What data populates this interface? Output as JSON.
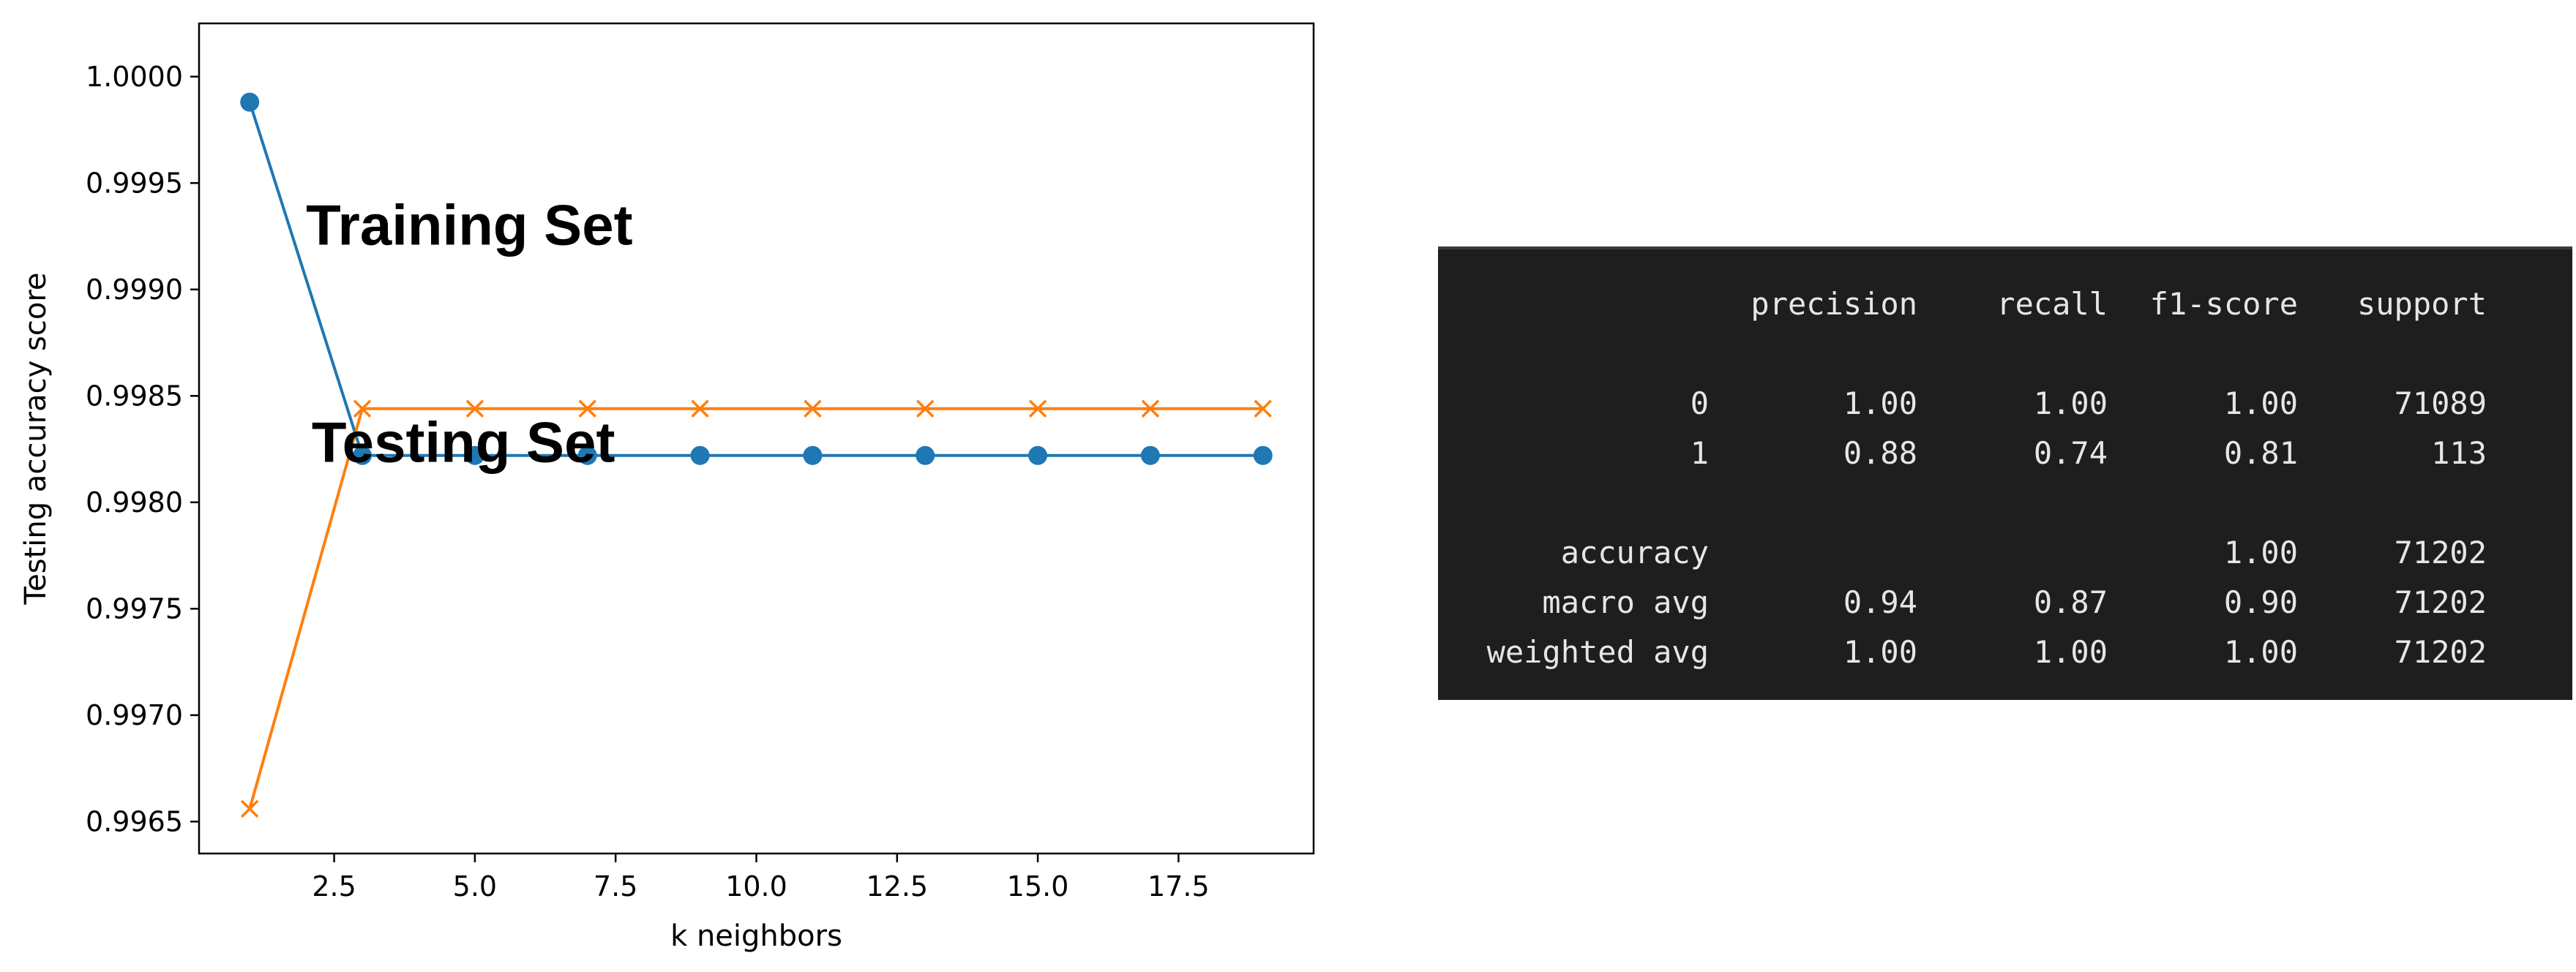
{
  "chart_data": {
    "type": "line",
    "title": "",
    "xlabel": "k neighbors",
    "ylabel": "Testing accuracy score",
    "xlim": [
      0.1,
      19.9
    ],
    "ylim": [
      0.99635,
      1.00025
    ],
    "x_ticks": [
      2.5,
      5.0,
      7.5,
      10.0,
      12.5,
      15.0,
      17.5
    ],
    "y_ticks": [
      0.9965,
      0.997,
      0.9975,
      0.998,
      0.9985,
      0.999,
      0.9995,
      1.0
    ],
    "x_tick_labels": [
      "2.5",
      "5.0",
      "7.5",
      "10.0",
      "12.5",
      "15.0",
      "17.5"
    ],
    "y_tick_labels": [
      "0.9965",
      "0.9970",
      "0.9975",
      "0.9980",
      "0.9985",
      "0.9990",
      "0.9995",
      "1.0000"
    ],
    "x": [
      1,
      3,
      5,
      7,
      9,
      11,
      13,
      15,
      17,
      19
    ],
    "series": [
      {
        "marker": "circle",
        "color": "#1f77b4",
        "values": [
          0.99988,
          0.99822,
          0.99822,
          0.99822,
          0.99822,
          0.99822,
          0.99822,
          0.99822,
          0.99822,
          0.99822
        ]
      },
      {
        "marker": "x",
        "color": "#ff7f0e",
        "values": [
          0.99656,
          0.99844,
          0.99844,
          0.99844,
          0.99844,
          0.99844,
          0.99844,
          0.99844,
          0.99844,
          0.99844
        ]
      }
    ],
    "annotations": [
      {
        "text": "Training Set",
        "x": 2.0,
        "y": 0.99921
      },
      {
        "text": "Testing Set",
        "x": 2.1,
        "y": 0.99819
      }
    ],
    "grid": false,
    "legend": "none"
  },
  "report": {
    "headers": [
      "",
      "precision",
      "recall",
      "f1-score",
      "support"
    ],
    "rows": [
      [
        "0",
        "1.00",
        "1.00",
        "1.00",
        "71089"
      ],
      [
        "1",
        "0.88",
        "0.74",
        "0.81",
        "113"
      ],
      null,
      [
        "accuracy",
        "",
        "",
        "1.00",
        "71202"
      ],
      [
        "macro avg",
        "0.94",
        "0.87",
        "0.90",
        "71202"
      ],
      [
        "weighted avg",
        "1.00",
        "1.00",
        "1.00",
        "71202"
      ]
    ]
  }
}
